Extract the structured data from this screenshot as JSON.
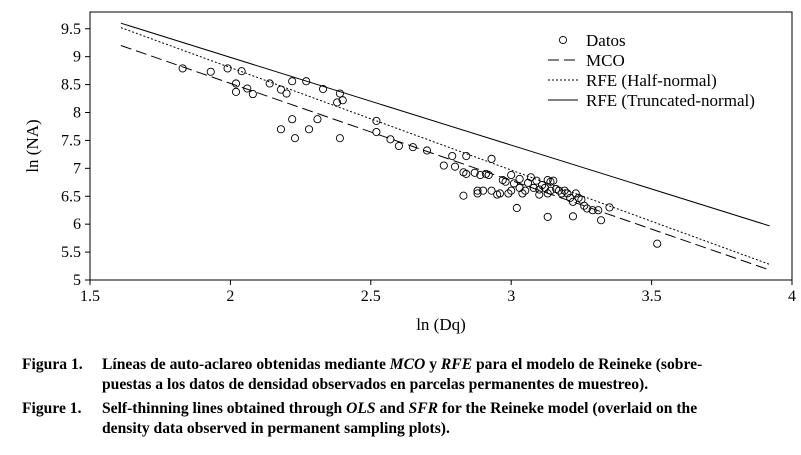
{
  "chart_data": {
    "type": "scatter",
    "xlabel": "ln (Dq)",
    "ylabel": "ln (NA)",
    "xlim": [
      1.5,
      4
    ],
    "ylim": [
      5,
      9.8
    ],
    "xticks": [
      "1.5",
      "2",
      "2.5",
      "3",
      "3.5",
      "4"
    ],
    "yticks": [
      "5",
      "5.5",
      "6",
      "6.5",
      "7",
      "7.5",
      "8",
      "8.5",
      "9",
      "9.5"
    ],
    "legend_position": "top-right",
    "series": [
      {
        "name": "Datos",
        "kind": "points",
        "points": [
          [
            1.83,
            8.79
          ],
          [
            1.93,
            8.73
          ],
          [
            1.99,
            8.79
          ],
          [
            2.02,
            8.52
          ],
          [
            2.02,
            8.37
          ],
          [
            2.04,
            8.74
          ],
          [
            2.06,
            8.43
          ],
          [
            2.08,
            8.33
          ],
          [
            2.14,
            8.52
          ],
          [
            2.18,
            8.41
          ],
          [
            2.18,
            7.7
          ],
          [
            2.2,
            8.34
          ],
          [
            2.22,
            8.56
          ],
          [
            2.22,
            7.88
          ],
          [
            2.23,
            7.54
          ],
          [
            2.27,
            8.56
          ],
          [
            2.28,
            7.7
          ],
          [
            2.31,
            7.88
          ],
          [
            2.33,
            8.42
          ],
          [
            2.38,
            8.18
          ],
          [
            2.39,
            8.34
          ],
          [
            2.39,
            7.54
          ],
          [
            2.4,
            8.22
          ],
          [
            2.52,
            7.85
          ],
          [
            2.52,
            7.65
          ],
          [
            2.57,
            7.52
          ],
          [
            2.6,
            7.4
          ],
          [
            2.65,
            7.38
          ],
          [
            2.7,
            7.32
          ],
          [
            2.76,
            7.05
          ],
          [
            2.79,
            7.22
          ],
          [
            2.8,
            7.03
          ],
          [
            2.83,
            6.93
          ],
          [
            2.84,
            7.22
          ],
          [
            2.84,
            6.9
          ],
          [
            2.83,
            6.51
          ],
          [
            2.87,
            6.92
          ],
          [
            2.88,
            6.6
          ],
          [
            2.88,
            6.55
          ],
          [
            2.89,
            6.88
          ],
          [
            2.9,
            6.6
          ],
          [
            2.91,
            6.9
          ],
          [
            2.92,
            6.88
          ],
          [
            2.93,
            6.6
          ],
          [
            2.93,
            7.17
          ],
          [
            2.95,
            6.53
          ],
          [
            2.96,
            6.55
          ],
          [
            2.97,
            6.79
          ],
          [
            2.98,
            6.76
          ],
          [
            2.99,
            6.55
          ],
          [
            3.0,
            6.88
          ],
          [
            3.0,
            6.6
          ],
          [
            3.01,
            6.73
          ],
          [
            3.02,
            6.29
          ],
          [
            3.03,
            6.81
          ],
          [
            3.03,
            6.65
          ],
          [
            3.04,
            6.55
          ],
          [
            3.05,
            6.6
          ],
          [
            3.06,
            6.74
          ],
          [
            3.07,
            6.84
          ],
          [
            3.08,
            6.65
          ],
          [
            3.09,
            6.78
          ],
          [
            3.1,
            6.62
          ],
          [
            3.1,
            6.53
          ],
          [
            3.11,
            6.7
          ],
          [
            3.12,
            6.65
          ],
          [
            3.13,
            6.79
          ],
          [
            3.13,
            6.55
          ],
          [
            3.14,
            6.76
          ],
          [
            3.14,
            6.6
          ],
          [
            3.15,
            6.78
          ],
          [
            3.13,
            6.13
          ],
          [
            3.16,
            6.63
          ],
          [
            3.17,
            6.6
          ],
          [
            3.18,
            6.55
          ],
          [
            3.19,
            6.6
          ],
          [
            3.2,
            6.55
          ],
          [
            3.21,
            6.47
          ],
          [
            3.22,
            6.4
          ],
          [
            3.23,
            6.55
          ],
          [
            3.22,
            6.14
          ],
          [
            3.24,
            6.47
          ],
          [
            3.25,
            6.44
          ],
          [
            3.26,
            6.33
          ],
          [
            3.27,
            6.28
          ],
          [
            3.29,
            6.25
          ],
          [
            3.31,
            6.25
          ],
          [
            3.32,
            6.07
          ],
          [
            3.35,
            6.3
          ],
          [
            3.52,
            5.65
          ]
        ]
      },
      {
        "name": "MCO",
        "kind": "line",
        "style": "dashed",
        "x": [
          1.61,
          3.92
        ],
        "y": [
          9.2,
          5.18
        ]
      },
      {
        "name": "RFE (Half-normal)",
        "kind": "line",
        "style": "dotted",
        "x": [
          1.61,
          3.92
        ],
        "y": [
          9.52,
          5.28
        ]
      },
      {
        "name": "RFE (Truncated-normal)",
        "kind": "line",
        "style": "solid",
        "x": [
          1.61,
          3.92
        ],
        "y": [
          9.6,
          5.97
        ]
      }
    ]
  },
  "caption_es": {
    "label": "Figura 1.",
    "line1_a": "Líneas de auto-aclareo obtenidas mediante ",
    "line1_b": "MCO",
    "line1_c": " y ",
    "line1_d": "RFE",
    "line1_e": " para el modelo de Reineke (sobre-",
    "line2": "puestas a los datos de densidad observados en parcelas permanentes de muestreo)."
  },
  "caption_en": {
    "label": "Figure 1.",
    "line1_a": "Self-thinning lines obtained through ",
    "line1_b": "OLS",
    "line1_c": " and ",
    "line1_d": "SFR",
    "line1_e": " for the Reineke model (overlaid on the",
    "line2": "density data observed in permanent sampling plots)."
  }
}
